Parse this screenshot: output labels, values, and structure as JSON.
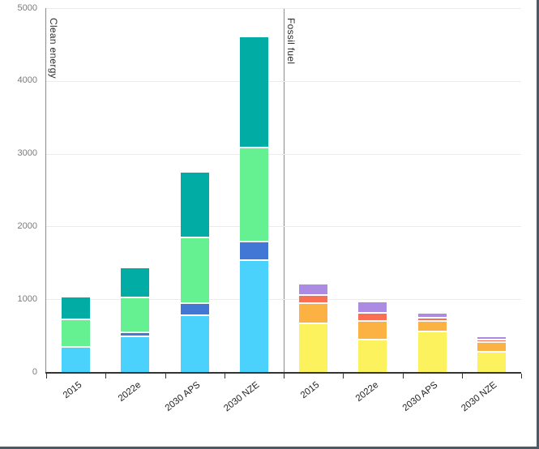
{
  "window": {
    "background": "#ffffff",
    "edge_color": "#4d5a63"
  },
  "chart_data": {
    "type": "bar",
    "stacked": true,
    "title": "",
    "xlabel": "",
    "ylabel": "",
    "ylim": [
      0,
      5000
    ],
    "y_ticks": [
      0,
      1000,
      2000,
      3000,
      4000,
      5000
    ],
    "grid": true,
    "legend": "none",
    "panels": [
      {
        "title": "Clean energy",
        "categories": [
          "2015",
          "2022e",
          "2030 APS",
          "2030 NZE"
        ],
        "series": [
          {
            "name": "light-blue-segment",
            "color": "#4AD2FC",
            "values": [
              340,
              480,
              765,
              1520
            ]
          },
          {
            "name": "dark-blue-segment",
            "color": "#4277D6",
            "values": [
              0,
              55,
              170,
              260
            ]
          },
          {
            "name": "green-segment",
            "color": "#65F091",
            "values": [
              370,
              480,
              905,
              1290
            ]
          },
          {
            "name": "teal-segment",
            "color": "#00ACA4",
            "values": [
              320,
              410,
              900,
              1530
            ]
          }
        ],
        "totals": [
          1030,
          1425,
          2740,
          4600
        ]
      },
      {
        "title": "Fossil fuel",
        "categories": [
          "2015",
          "2022e",
          "2030 APS",
          "2030 NZE"
        ],
        "series": [
          {
            "name": "yellow-segment",
            "color": "#FCF25E",
            "values": [
              655,
              435,
              540,
              265
            ]
          },
          {
            "name": "orange-segment",
            "color": "#FCB243",
            "values": [
              280,
              260,
              155,
              135
            ]
          },
          {
            "name": "red-segment",
            "color": "#F96F54",
            "values": [
              110,
              110,
              45,
              35
            ]
          },
          {
            "name": "purple-segment",
            "color": "#AB8CE2",
            "values": [
              160,
              150,
              65,
              45
            ]
          }
        ],
        "totals": [
          1205,
          955,
          805,
          480
        ]
      }
    ],
    "style": {
      "grid_color": "#ebebeb",
      "axis_line_color": "#333333",
      "left_edge_color": "#8c8c8c",
      "divider_color": "#8c8c8c",
      "y_label_color": "#7b7b7b",
      "x_label_color": "#222222",
      "panel_label_color": "#2d2d2d",
      "segment_gap_color": "#ffffff"
    }
  }
}
